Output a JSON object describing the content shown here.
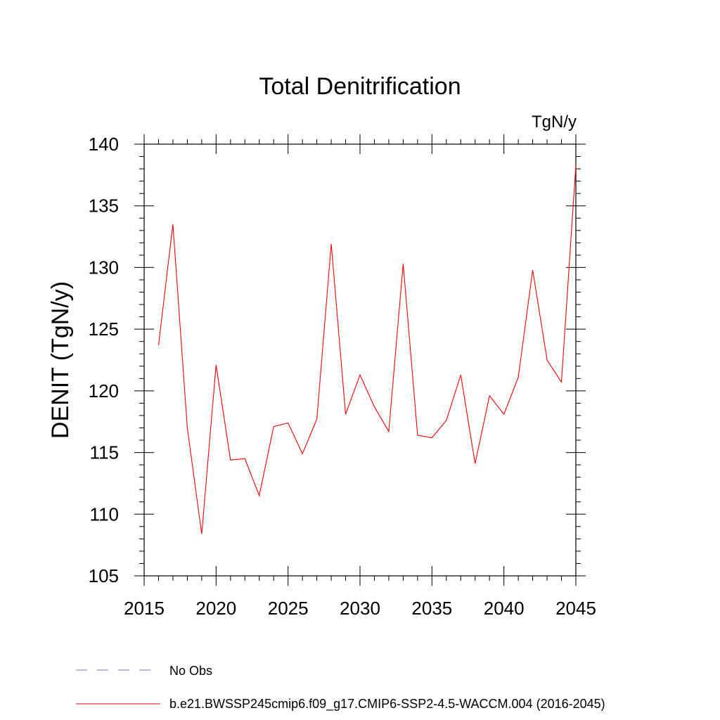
{
  "chart_data": {
    "type": "line",
    "title": "Total Denitrification",
    "units": "TgN/y",
    "ylabel": "DENIT  (TgN/y)",
    "xlabel": "",
    "xlim": [
      2015,
      2045
    ],
    "ylim": [
      105,
      140
    ],
    "xticks": [
      2015,
      2020,
      2025,
      2030,
      2035,
      2040,
      2045
    ],
    "yticks": [
      105,
      110,
      115,
      120,
      125,
      130,
      135,
      140
    ],
    "grid": false,
    "x": [
      2016,
      2017,
      2018,
      2019,
      2020,
      2021,
      2022,
      2023,
      2024,
      2025,
      2026,
      2027,
      2028,
      2029,
      2030,
      2031,
      2032,
      2033,
      2034,
      2035,
      2036,
      2037,
      2038,
      2039,
      2040,
      2041,
      2042,
      2043,
      2044,
      2045
    ],
    "series": [
      {
        "name": "b.e21.BWSSP245cmip6.f09_g17.CMIP6-SSP2-4.5-WACCM.004 (2016-2045)",
        "color": "#ff0000",
        "values": [
          123.7,
          133.5,
          117.0,
          108.4,
          122.1,
          114.4,
          114.5,
          111.5,
          117.1,
          117.4,
          114.9,
          117.7,
          131.9,
          118.1,
          121.3,
          118.7,
          116.7,
          130.3,
          116.4,
          116.2,
          117.6,
          121.3,
          114.1,
          119.6,
          118.1,
          121.1,
          129.8,
          122.5,
          120.7,
          138.3
        ]
      }
    ],
    "legend": {
      "placement": "bottom",
      "entries": [
        {
          "label": "No Obs",
          "color": "#7b6fc4",
          "dash": true
        },
        {
          "label": "b.e21.BWSSP245cmip6.f09_g17.CMIP6-SSP2-4.5-WACCM.004 (2016-2045)",
          "color": "#ff0000",
          "dash": false
        }
      ]
    }
  }
}
